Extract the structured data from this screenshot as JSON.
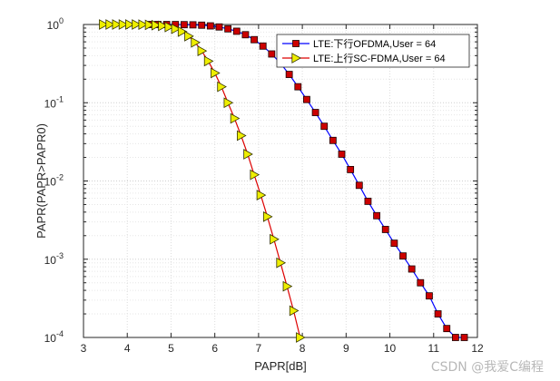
{
  "chart_data": {
    "type": "line",
    "title": "",
    "xlabel": "PAPR[dB]",
    "ylabel": "PAPR(PAPR>PAPR0)",
    "x_scale": "linear",
    "y_scale": "log",
    "xlim": [
      3,
      12
    ],
    "ylim": [
      0.0001,
      1
    ],
    "x_ticks": [
      "3",
      "4",
      "5",
      "6",
      "7",
      "8",
      "9",
      "10",
      "11",
      "12"
    ],
    "y_ticks": [
      {
        "value": 1,
        "mantissa": "10",
        "exp": "0"
      },
      {
        "value": 0.1,
        "mantissa": "10",
        "exp": "-1"
      },
      {
        "value": 0.01,
        "mantissa": "10",
        "exp": "-2"
      },
      {
        "value": 0.001,
        "mantissa": "10",
        "exp": "-3"
      },
      {
        "value": 0.0001,
        "mantissa": "10",
        "exp": "-4"
      }
    ],
    "grid": true,
    "minor_grid": true,
    "legend_position": "top-right",
    "series": [
      {
        "name": "LTE:下行OFDMA,User = 64",
        "line_color": "#0000ff",
        "marker": "square",
        "marker_fill": "#cc0000",
        "marker_edge": "#1a0000",
        "x": [
          4.5,
          4.7,
          4.9,
          5.1,
          5.3,
          5.5,
          5.7,
          5.9,
          6.1,
          6.3,
          6.5,
          6.7,
          6.9,
          7.1,
          7.3,
          7.5,
          7.7,
          7.9,
          8.1,
          8.3,
          8.5,
          8.7,
          8.9,
          9.1,
          9.3,
          9.5,
          9.7,
          9.9,
          10.1,
          10.3,
          10.5,
          10.7,
          10.9,
          11.1,
          11.3,
          11.5,
          11.7
        ],
        "y": [
          1.0,
          1.0,
          0.999,
          0.998,
          0.995,
          0.99,
          0.98,
          0.96,
          0.93,
          0.88,
          0.82,
          0.74,
          0.64,
          0.53,
          0.42,
          0.32,
          0.23,
          0.16,
          0.11,
          0.075,
          0.05,
          0.033,
          0.022,
          0.014,
          0.0088,
          0.0055,
          0.0036,
          0.0024,
          0.0016,
          0.0011,
          0.00075,
          0.0005,
          0.00034,
          0.0002,
          0.00013,
          0.0001,
          0.0001
        ]
      },
      {
        "name": "LTE:上行SC-FDMA,User = 64",
        "line_color": "#dd0000",
        "marker": "triangle-right",
        "marker_fill": "#eeee00",
        "marker_edge": "#333300",
        "x": [
          3.45,
          3.6,
          3.75,
          3.9,
          4.05,
          4.2,
          4.35,
          4.5,
          4.65,
          4.8,
          4.95,
          5.1,
          5.25,
          5.4,
          5.55,
          5.7,
          5.85,
          6.0,
          6.15,
          6.3,
          6.45,
          6.6,
          6.75,
          6.9,
          7.05,
          7.2,
          7.35,
          7.5,
          7.65,
          7.8,
          7.95
        ],
        "y": [
          1.0,
          1.0,
          1.0,
          1.0,
          1.0,
          0.999,
          0.997,
          0.99,
          0.98,
          0.96,
          0.93,
          0.88,
          0.81,
          0.71,
          0.59,
          0.46,
          0.34,
          0.24,
          0.16,
          0.1,
          0.063,
          0.038,
          0.022,
          0.012,
          0.0066,
          0.0035,
          0.0018,
          0.0009,
          0.00045,
          0.00022,
          0.0001
        ]
      }
    ]
  },
  "watermark": "CSDN @我爱C编程"
}
